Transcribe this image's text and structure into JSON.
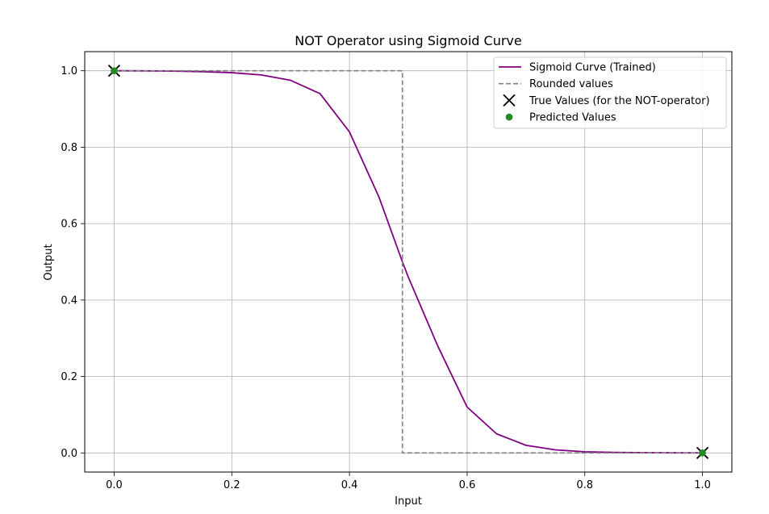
{
  "chart_data": {
    "type": "line",
    "title": "NOT Operator using Sigmoid Curve",
    "xlabel": "Input",
    "ylabel": "Output",
    "xlim": [
      -0.05,
      1.05
    ],
    "ylim": [
      -0.05,
      1.05
    ],
    "xticks": [
      0.0,
      0.2,
      0.4,
      0.6,
      0.8,
      1.0
    ],
    "xtick_labels": [
      "0.0",
      "0.2",
      "0.4",
      "0.6",
      "0.8",
      "1.0"
    ],
    "yticks": [
      0.0,
      0.2,
      0.4,
      0.6,
      0.8,
      1.0
    ],
    "ytick_labels": [
      "0.0",
      "0.2",
      "0.4",
      "0.6",
      "0.8",
      "1.0"
    ],
    "grid": true,
    "legend_position": "top-right",
    "series": [
      {
        "name": "Sigmoid Curve (Trained)",
        "kind": "line",
        "style": "solid",
        "color": "#800080",
        "x": [
          0.0,
          0.05,
          0.1,
          0.15,
          0.2,
          0.25,
          0.3,
          0.35,
          0.4,
          0.45,
          0.49,
          0.5,
          0.55,
          0.6,
          0.65,
          0.7,
          0.75,
          0.8,
          0.85,
          0.9,
          0.95,
          1.0
        ],
        "y": [
          1.0,
          0.9997,
          0.999,
          0.9975,
          0.995,
          0.989,
          0.975,
          0.94,
          0.84,
          0.67,
          0.5,
          0.46,
          0.28,
          0.12,
          0.05,
          0.02,
          0.008,
          0.003,
          0.0015,
          0.0006,
          0.0003,
          0.0001
        ]
      },
      {
        "name": "Rounded values",
        "kind": "line",
        "style": "dashed",
        "color": "#808080",
        "x": [
          0.0,
          0.49,
          0.49,
          1.0
        ],
        "y": [
          1.0,
          1.0,
          0.0,
          0.0
        ]
      },
      {
        "name": "True Values (for the NOT-operator)",
        "kind": "scatter",
        "marker": "x",
        "color": "#000000",
        "x": [
          0.0,
          1.0
        ],
        "y": [
          1.0,
          0.0
        ]
      },
      {
        "name": "Predicted Values",
        "kind": "scatter",
        "marker": "circle",
        "color": "#228b22",
        "x": [
          0.0,
          1.0
        ],
        "y": [
          1.0,
          0.0
        ]
      }
    ]
  }
}
